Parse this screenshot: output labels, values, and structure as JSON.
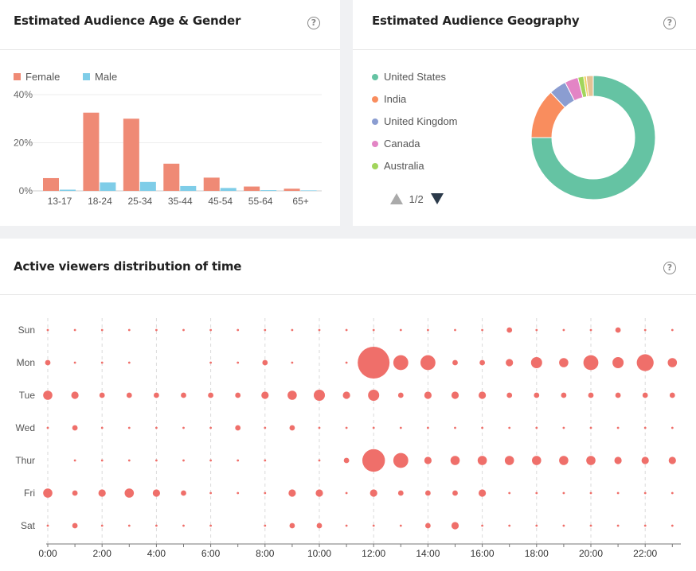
{
  "age_panel": {
    "title": "Estimated Audience Age & Gender",
    "help": "?",
    "legend": [
      {
        "label": "Female",
        "color": "#ef8a75"
      },
      {
        "label": "Male",
        "color": "#7fcde8"
      }
    ]
  },
  "geo_panel": {
    "title": "Estimated Audience Geography",
    "help": "?",
    "pager": "1/2"
  },
  "time_panel": {
    "title": "Active viewers distribution of time",
    "help": "?"
  },
  "chart_data": [
    {
      "type": "bar",
      "categories": [
        "13-17",
        "18-24",
        "25-34",
        "35-44",
        "45-54",
        "55-64",
        "65+"
      ],
      "series": [
        {
          "name": "Female",
          "values": [
            5.3,
            32.5,
            30.0,
            11.3,
            5.5,
            1.8,
            0.9
          ],
          "color": "#ef8a75"
        },
        {
          "name": "Male",
          "values": [
            0.5,
            3.5,
            3.7,
            2.0,
            1.2,
            0.3,
            0.2
          ],
          "color": "#7fcde8"
        }
      ],
      "yticks": [
        "0%",
        "20%",
        "40%"
      ],
      "ylim": [
        0,
        40
      ],
      "grid": true,
      "legend": "top-left"
    },
    {
      "type": "pie",
      "donut": true,
      "labels": [
        "United States",
        "India",
        "United Kingdom",
        "Canada",
        "Australia"
      ],
      "legend_colors": [
        "#65c3a3",
        "#f98d5e",
        "#8b9dd1",
        "#e385c5",
        "#a2d55c"
      ],
      "slices": [
        {
          "label": "United States",
          "value": 75.0,
          "color": "#65c3a3"
        },
        {
          "label": "India",
          "value": 13.0,
          "color": "#f98d5e"
        },
        {
          "label": "United Kingdom",
          "value": 4.5,
          "color": "#8b9dd1"
        },
        {
          "label": "Canada",
          "value": 3.5,
          "color": "#e385c5"
        },
        {
          "label": "Australia",
          "value": 1.5,
          "color": "#a2d55c"
        },
        {
          "label": "",
          "value": 0.7,
          "color": "#f2d36a"
        },
        {
          "label": "",
          "value": 1.8,
          "color": "#e5c294"
        }
      ]
    },
    {
      "type": "scatter",
      "subtype": "punchcard",
      "rows": [
        "Sun",
        "Mon",
        "Tue",
        "Wed",
        "Thur",
        "Fri",
        "Sat"
      ],
      "hours": [
        0,
        1,
        2,
        3,
        4,
        5,
        6,
        7,
        8,
        9,
        10,
        11,
        12,
        13,
        14,
        15,
        16,
        17,
        18,
        19,
        20,
        21,
        22,
        23
      ],
      "xticks": [
        "0:00",
        "2:00",
        "4:00",
        "6:00",
        "8:00",
        "10:00",
        "12:00",
        "14:00",
        "16:00",
        "18:00",
        "20:00",
        "22:00"
      ],
      "color": "#ef6f6a",
      "values": [
        [
          1,
          1,
          1,
          1,
          1,
          1,
          1,
          1,
          1,
          1,
          1,
          1,
          1,
          1,
          1,
          1,
          1,
          2,
          1,
          1,
          1,
          2,
          1,
          1
        ],
        [
          2,
          1,
          1,
          1,
          0,
          0,
          1,
          1,
          2,
          1,
          0,
          1,
          20,
          7,
          7,
          2,
          2,
          3,
          5,
          4,
          7,
          5,
          8,
          4
        ],
        [
          4,
          3,
          2,
          2,
          2,
          2,
          2,
          2,
          3,
          4,
          5,
          3,
          5,
          2,
          3,
          3,
          3,
          2,
          2,
          2,
          2,
          2,
          2,
          2
        ],
        [
          1,
          2,
          1,
          1,
          1,
          1,
          1,
          2,
          1,
          2,
          1,
          1,
          1,
          1,
          1,
          1,
          1,
          1,
          1,
          1,
          1,
          1,
          1,
          1
        ],
        [
          0,
          1,
          1,
          1,
          1,
          1,
          1,
          1,
          1,
          0,
          1,
          2,
          11,
          7,
          3,
          4,
          4,
          4,
          4,
          4,
          4,
          3,
          3,
          3
        ],
        [
          4,
          2,
          3,
          4,
          3,
          2,
          1,
          1,
          1,
          3,
          3,
          1,
          3,
          2,
          2,
          2,
          3,
          1,
          1,
          1,
          1,
          1,
          1,
          1
        ],
        [
          1,
          2,
          1,
          1,
          1,
          1,
          1,
          0,
          1,
          2,
          2,
          1,
          1,
          1,
          2,
          3,
          1,
          1,
          1,
          1,
          1,
          1,
          1,
          1
        ]
      ]
    }
  ]
}
